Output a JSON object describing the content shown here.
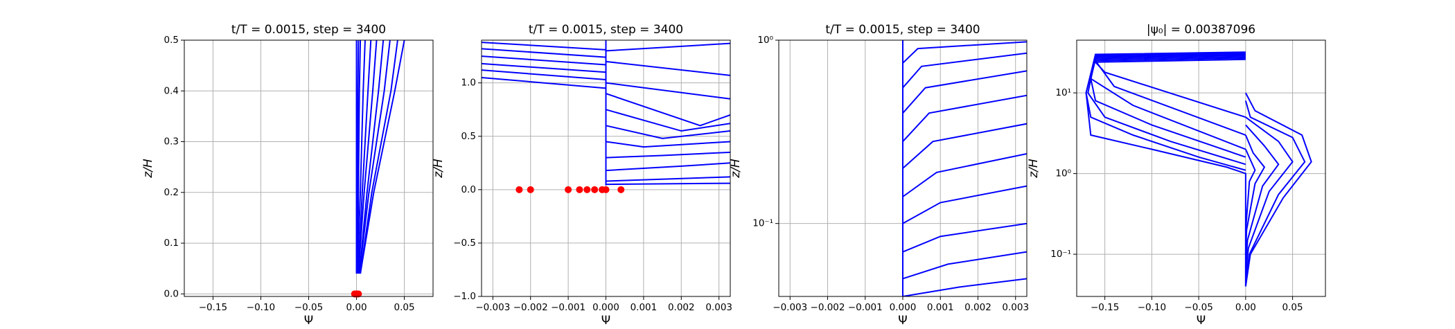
{
  "chart_data": [
    {
      "type": "line",
      "title": "t/T = 0.0015, step = 3400",
      "xlabel": "Ψ",
      "ylabel": "z/H",
      "yscale": "linear",
      "grid": true,
      "xlim": [
        -0.18,
        0.08
      ],
      "ylim": [
        -0.005,
        0.5
      ],
      "xticks": [
        {
          "value": -0.15,
          "label": "−0.15"
        },
        {
          "value": -0.1,
          "label": "−0.10"
        },
        {
          "value": -0.05,
          "label": "−0.05"
        },
        {
          "value": 0,
          "label": "0.00"
        },
        0.05
      ],
      "yticks": [
        {
          "value": 0,
          "label": "0.0"
        },
        0.1,
        0.2,
        0.3,
        0.4,
        0.5
      ],
      "series": [
        {
          "color": "#0000ff",
          "x": [
            0.0,
            0.0,
            0.0,
            0.0
          ],
          "y": [
            0.04,
            0.2,
            0.4,
            0.5
          ]
        },
        {
          "color": "#0000ff",
          "x": [
            0.0005,
            0.001,
            0.0015,
            0.002
          ],
          "y": [
            0.04,
            0.2,
            0.4,
            0.5
          ]
        },
        {
          "color": "#0000ff",
          "x": [
            0.001,
            0.002,
            0.003,
            0.004
          ],
          "y": [
            0.04,
            0.2,
            0.4,
            0.5
          ]
        },
        {
          "color": "#0000ff",
          "x": [
            0.001,
            0.004,
            0.007,
            0.009
          ],
          "y": [
            0.04,
            0.2,
            0.4,
            0.5
          ]
        },
        {
          "color": "#0000ff",
          "x": [
            0.002,
            0.006,
            0.012,
            0.015
          ],
          "y": [
            0.04,
            0.2,
            0.4,
            0.5
          ]
        },
        {
          "color": "#0000ff",
          "x": [
            0.002,
            0.008,
            0.017,
            0.021
          ],
          "y": [
            0.04,
            0.2,
            0.4,
            0.5
          ]
        },
        {
          "color": "#0000ff",
          "x": [
            0.003,
            0.011,
            0.023,
            0.028
          ],
          "y": [
            0.04,
            0.2,
            0.4,
            0.5
          ]
        },
        {
          "color": "#0000ff",
          "x": [
            0.003,
            0.013,
            0.029,
            0.035
          ],
          "y": [
            0.04,
            0.2,
            0.4,
            0.5
          ]
        },
        {
          "color": "#0000ff",
          "x": [
            0.004,
            0.016,
            0.036,
            0.043
          ],
          "y": [
            0.04,
            0.2,
            0.4,
            0.5
          ]
        },
        {
          "color": "#0000ff",
          "x": [
            0.004,
            0.018,
            0.04,
            0.05
          ],
          "y": [
            0.04,
            0.2,
            0.4,
            0.5
          ]
        },
        {
          "type": "scatter",
          "color": "#ff0000",
          "x": [
            -0.002,
            -0.001,
            0.0,
            0.001,
            0.002
          ],
          "y": [
            0,
            0,
            0,
            0,
            0
          ]
        }
      ]
    },
    {
      "type": "line",
      "title": "t/T = 0.0015, step = 3400",
      "xlabel": "Ψ",
      "ylabel": "z/H",
      "yscale": "linear",
      "grid": true,
      "xlim": [
        -0.0033,
        0.0033
      ],
      "ylim": [
        -1.0,
        1.4
      ],
      "xticks": [
        {
          "value": -0.003,
          "label": "−0.003"
        },
        {
          "value": -0.002,
          "label": "−0.002"
        },
        {
          "value": -0.001,
          "label": "−0.001"
        },
        {
          "value": 0,
          "label": "0.000"
        },
        0.001,
        0.002,
        0.003
      ],
      "yticks": [
        {
          "value": -1.0,
          "label": "−1.0"
        },
        {
          "value": -0.5,
          "label": "−0.5"
        },
        {
          "value": 0,
          "label": "0.0"
        },
        0.5,
        {
          "value": 1.0,
          "label": "1.0"
        }
      ],
      "series": [
        {
          "color": "#0000ff",
          "x": [
            0.0,
            0.0
          ],
          "y": [
            0.04,
            1.4
          ]
        },
        {
          "color": "#0000ff",
          "x": [
            -0.0033,
            0.0
          ],
          "y": [
            1.05,
            0.95
          ]
        },
        {
          "color": "#0000ff",
          "x": [
            -0.0033,
            0.0
          ],
          "y": [
            1.12,
            1.03
          ]
        },
        {
          "color": "#0000ff",
          "x": [
            -0.0033,
            0.0
          ],
          "y": [
            1.18,
            1.1
          ]
        },
        {
          "color": "#0000ff",
          "x": [
            -0.0033,
            0.0
          ],
          "y": [
            1.25,
            1.17
          ]
        },
        {
          "color": "#0000ff",
          "x": [
            -0.0033,
            0.0
          ],
          "y": [
            1.32,
            1.24
          ]
        },
        {
          "color": "#0000ff",
          "x": [
            -0.0033,
            0.0
          ],
          "y": [
            1.38,
            1.31
          ]
        },
        {
          "color": "#0000ff",
          "x": [
            0.0,
            0.0033
          ],
          "y": [
            1.3,
            1.37
          ]
        },
        {
          "color": "#0000ff",
          "x": [
            0.0,
            0.0033
          ],
          "y": [
            1.2,
            1.07
          ]
        },
        {
          "color": "#0000ff",
          "x": [
            0.0,
            0.0033
          ],
          "y": [
            1.0,
            0.85
          ]
        },
        {
          "color": "#0000ff",
          "x": [
            0.0,
            0.0025,
            0.0033
          ],
          "y": [
            0.9,
            0.6,
            0.7
          ]
        },
        {
          "color": "#0000ff",
          "x": [
            0.0,
            0.002,
            0.0033
          ],
          "y": [
            0.75,
            0.55,
            0.62
          ]
        },
        {
          "color": "#0000ff",
          "x": [
            0.0,
            0.0015,
            0.0033
          ],
          "y": [
            0.6,
            0.48,
            0.55
          ]
        },
        {
          "color": "#0000ff",
          "x": [
            0.0,
            0.001,
            0.0033
          ],
          "y": [
            0.45,
            0.4,
            0.45
          ]
        },
        {
          "color": "#0000ff",
          "x": [
            0.0,
            0.0015,
            0.0033
          ],
          "y": [
            0.3,
            0.32,
            0.35
          ]
        },
        {
          "color": "#0000ff",
          "x": [
            0.0,
            0.002,
            0.0033
          ],
          "y": [
            0.18,
            0.22,
            0.25
          ]
        },
        {
          "color": "#0000ff",
          "x": [
            0.0,
            0.0033
          ],
          "y": [
            0.08,
            0.12
          ]
        },
        {
          "color": "#0000ff",
          "x": [
            0.0,
            0.0033
          ],
          "y": [
            0.05,
            0.06
          ]
        },
        {
          "type": "scatter",
          "color": "#ff0000",
          "x": [
            -0.0023,
            -0.002,
            -0.001,
            -0.0007,
            -0.0005,
            -0.0003,
            -0.0001,
            0.0,
            0.0004
          ],
          "y": [
            0,
            0,
            0,
            0,
            0,
            0,
            0,
            0,
            0
          ]
        }
      ]
    },
    {
      "type": "line",
      "title": "t/T = 0.0015, step = 3400",
      "xlabel": "Ψ",
      "ylabel": "z/H",
      "yscale": "log",
      "grid": true,
      "xlim": [
        -0.0033,
        0.0033
      ],
      "ylim": [
        0.04,
        1.0
      ],
      "xticks": [
        {
          "value": -0.003,
          "label": "−0.003"
        },
        {
          "value": -0.002,
          "label": "−0.002"
        },
        {
          "value": -0.001,
          "label": "−0.001"
        },
        {
          "value": 0,
          "label": "0.000"
        },
        0.001,
        0.002,
        0.003
      ],
      "yticks": [
        {
          "value": 0.1,
          "label": "10⁻¹"
        },
        {
          "value": 1.0,
          "label": "10⁰"
        }
      ],
      "series": [
        {
          "color": "#0000ff",
          "x": [
            0.0,
            0.0
          ],
          "y": [
            0.04,
            1.0
          ]
        },
        {
          "color": "#0000ff",
          "x": [
            0.0,
            0.0015,
            0.0033
          ],
          "y": [
            0.04,
            0.045,
            0.05
          ]
        },
        {
          "color": "#0000ff",
          "x": [
            0.0,
            0.0012,
            0.0033
          ],
          "y": [
            0.05,
            0.06,
            0.07
          ]
        },
        {
          "color": "#0000ff",
          "x": [
            0.0,
            0.001,
            0.0033
          ],
          "y": [
            0.07,
            0.085,
            0.1
          ]
        },
        {
          "color": "#0000ff",
          "x": [
            0.0,
            0.001,
            0.0033
          ],
          "y": [
            0.1,
            0.13,
            0.16
          ]
        },
        {
          "color": "#0000ff",
          "x": [
            0.0,
            0.0009,
            0.0033
          ],
          "y": [
            0.14,
            0.19,
            0.24
          ]
        },
        {
          "color": "#0000ff",
          "x": [
            0.0,
            0.0008,
            0.0033
          ],
          "y": [
            0.2,
            0.28,
            0.35
          ]
        },
        {
          "color": "#0000ff",
          "x": [
            0.0,
            0.0007,
            0.0033
          ],
          "y": [
            0.28,
            0.4,
            0.5
          ]
        },
        {
          "color": "#0000ff",
          "x": [
            0.0,
            0.0006,
            0.0033
          ],
          "y": [
            0.4,
            0.55,
            0.68
          ]
        },
        {
          "color": "#0000ff",
          "x": [
            0.0,
            0.0005,
            0.0033
          ],
          "y": [
            0.55,
            0.72,
            0.85
          ]
        },
        {
          "color": "#0000ff",
          "x": [
            0.0,
            0.0004,
            0.0033
          ],
          "y": [
            0.75,
            0.9,
            0.98
          ]
        }
      ]
    },
    {
      "type": "line",
      "title": "|ψ₀| = 0.00387096",
      "xlabel": "Ψ",
      "ylabel": "z/H",
      "yscale": "log",
      "grid": true,
      "xlim": [
        -0.18,
        0.085
      ],
      "ylim": [
        0.03,
        45
      ],
      "xticks": [
        {
          "value": -0.15,
          "label": "−0.15"
        },
        {
          "value": -0.1,
          "label": "−0.10"
        },
        {
          "value": -0.05,
          "label": "−0.05"
        },
        {
          "value": 0,
          "label": "0.00"
        },
        0.05
      ],
      "yticks": [
        {
          "value": 0.1,
          "label": "10⁻¹"
        },
        {
          "value": 1.0,
          "label": "10⁰"
        },
        {
          "value": 10,
          "label": "10¹"
        }
      ],
      "series": [
        {
          "color": "#0000ff",
          "x": [
            0.0,
            0.0,
            -0.02,
            -0.1,
            -0.165,
            -0.17,
            -0.16,
            0.0
          ],
          "y": [
            0.04,
            1.0,
            1.2,
            2.0,
            3.0,
            10,
            30,
            32
          ]
        },
        {
          "color": "#0000ff",
          "x": [
            0.0,
            -0.05,
            -0.12,
            -0.165,
            -0.17,
            -0.16,
            0.0
          ],
          "y": [
            1.1,
            1.6,
            3.0,
            5.0,
            10,
            29,
            31
          ]
        },
        {
          "color": "#0000ff",
          "x": [
            0.0,
            -0.08,
            -0.15,
            -0.168,
            -0.16,
            0.0
          ],
          "y": [
            1.3,
            2.5,
            5.0,
            10,
            28,
            30
          ]
        },
        {
          "color": "#0000ff",
          "x": [
            0.0,
            -0.1,
            -0.16,
            -0.165,
            -0.16,
            0.0
          ],
          "y": [
            1.6,
            4.0,
            8.0,
            15,
            27,
            29
          ]
        },
        {
          "color": "#0000ff",
          "x": [
            0.0,
            -0.12,
            -0.165,
            -0.16,
            0.0
          ],
          "y": [
            2.0,
            7.0,
            15,
            26,
            28
          ]
        },
        {
          "color": "#0000ff",
          "x": [
            0.0,
            -0.14,
            -0.16,
            0.0
          ],
          "y": [
            3.0,
            12,
            25,
            27
          ]
        },
        {
          "color": "#0000ff",
          "x": [
            0.0,
            -0.15,
            -0.16,
            0.0
          ],
          "y": [
            5.0,
            18,
            24,
            26
          ]
        },
        {
          "color": "#0000ff",
          "x": [
            0.0,
            0.005,
            0.04,
            0.07,
            0.06,
            0.01,
            0.0
          ],
          "y": [
            0.04,
            0.1,
            0.5,
            1.4,
            3.0,
            6.0,
            10
          ]
        },
        {
          "color": "#0000ff",
          "x": [
            0.0,
            0.004,
            0.035,
            0.063,
            0.05,
            0.005,
            0.0
          ],
          "y": [
            0.05,
            0.1,
            0.55,
            1.4,
            2.8,
            5.0,
            8.0
          ]
        },
        {
          "color": "#0000ff",
          "x": [
            0.0,
            0.003,
            0.025,
            0.05,
            0.035,
            0.0
          ],
          "y": [
            0.06,
            0.12,
            0.6,
            1.4,
            2.5,
            5.0
          ]
        },
        {
          "color": "#0000ff",
          "x": [
            0.0,
            0.002,
            0.018,
            0.035,
            0.02,
            0.0
          ],
          "y": [
            0.07,
            0.15,
            0.7,
            1.3,
            2.2,
            4.0
          ]
        },
        {
          "color": "#0000ff",
          "x": [
            0.0,
            0.001,
            0.01,
            0.02,
            0.008,
            0.0
          ],
          "y": [
            0.1,
            0.2,
            0.75,
            1.2,
            1.8,
            3.0
          ]
        },
        {
          "color": "#0000ff",
          "x": [
            0.0,
            0.004,
            0.01,
            0.0
          ],
          "y": [
            0.2,
            0.8,
            1.1,
            2.0
          ]
        }
      ]
    }
  ]
}
